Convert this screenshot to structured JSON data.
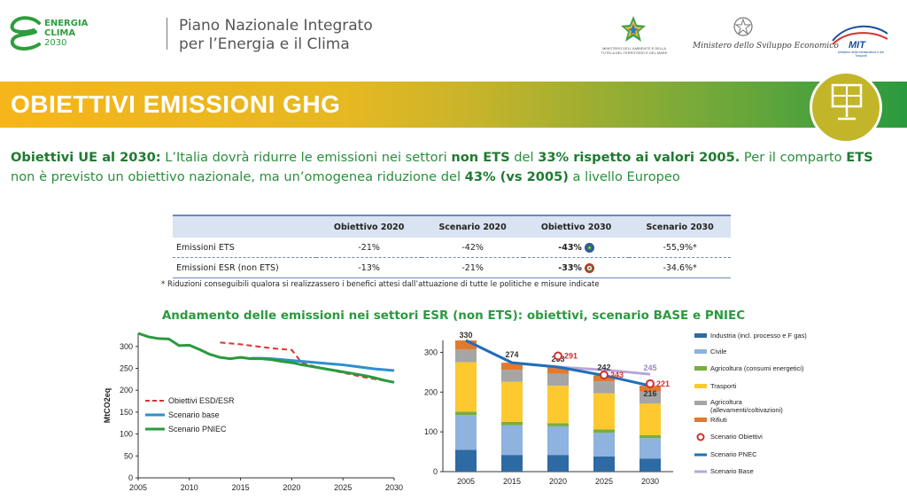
{
  "header": {
    "logo_line1": "ENERGIA",
    "logo_line2": "CLIMA",
    "logo_line3": "2030",
    "title_line1": "Piano Nazionale Integrato",
    "title_line2": "per l’Energia e il Clima",
    "ministry1": "MINISTERO DELL'AMBIENTE E DELLA TUTELA DEL TERRITORIO E DEL MARE",
    "ministry2": "Ministero dello Sviluppo Economico",
    "ministry3_logo": "MIT",
    "ministry3": "Ministero delle Infrastrutture e dei Trasporti"
  },
  "banner": {
    "title": "OBIETTIVI EMISSIONI GHG",
    "icon": "solar-panel-icon"
  },
  "intro": {
    "p1": "Obiettivi UE al 2030:",
    "p2": " L’Italia dovrà ridurre le emissioni nei settori ",
    "p3": "non ETS",
    "p4": " del ",
    "p5": "33% rispetto ai valori 2005.",
    "p6": " Per il comparto ",
    "p7": "ETS",
    "p8": " non è previsto un obiettivo nazionale, ma un’omogenea riduzione del ",
    "p9": "43% (vs 2005)",
    "p10": " a livello Europeo"
  },
  "table": {
    "headers": [
      "",
      "Obiettivo 2020",
      "Scenario 2020",
      "Obiettivo 2030",
      "Scenario 2030"
    ],
    "rows": [
      {
        "label": "Emissioni ETS",
        "cells": [
          "-21%",
          "-42%",
          "-43%",
          "-55,9%*"
        ]
      },
      {
        "label": "Emissioni ESR (non ETS)",
        "cells": [
          "-13%",
          "-21%",
          "-33%",
          "-34.6%*"
        ]
      }
    ],
    "note": "* Riduzioni conseguibili qualora si realizzassero i benefici attesi dall’attuazione di tutte le politiche e misure indicate"
  },
  "section_title": "Andamento delle emissioni nei settori ESR (non ETS): obiettivi, scenario BASE e PNIEC",
  "colors": {
    "green": "#2a9a3e",
    "blue_line": "#2e8fce",
    "red_dash": "#e03030",
    "industria": "#2e6aa3",
    "civile": "#8db3de",
    "agricoltura_energ": "#79ad3f",
    "trasporti": "#fdc92f",
    "agricoltura_allev": "#a5a5a5",
    "rifiuti": "#e07a30",
    "pnec_line": "#1f6fb8",
    "base_line": "#b8a6d9",
    "obiettivi_marker": "#d03030"
  },
  "chart_data": [
    {
      "type": "line",
      "title": "",
      "xlabel": "",
      "ylabel": "MtCO2eq",
      "xlim": [
        2005,
        2030
      ],
      "ylim": [
        0,
        330
      ],
      "x_ticks": [
        2005,
        2010,
        2015,
        2020,
        2025,
        2030
      ],
      "y_ticks": [
        0,
        50,
        100,
        150,
        200,
        250,
        300
      ],
      "grid": false,
      "legend_position": "bottom-left",
      "series": [
        {
          "name": "Obiettivi ESD/ESR",
          "style": "dashed",
          "x": [
            2013,
            2014,
            2015,
            2016,
            2017,
            2018,
            2019,
            2020,
            2021,
            2022,
            2023,
            2024,
            2025,
            2026,
            2027,
            2028,
            2029,
            2030
          ],
          "y": [
            309,
            307,
            305,
            302,
            299,
            296,
            294,
            292,
            262,
            256,
            250,
            245,
            240,
            235,
            230,
            226,
            222,
            219
          ]
        },
        {
          "name": "Scenario base",
          "style": "solid",
          "x": [
            2016,
            2017,
            2018,
            2019,
            2020,
            2021,
            2022,
            2023,
            2024,
            2025,
            2026,
            2027,
            2028,
            2029,
            2030
          ],
          "y": [
            273,
            273,
            272,
            270,
            268,
            266,
            264,
            262,
            260,
            258,
            255,
            252,
            249,
            247,
            245
          ]
        },
        {
          "name": "Scenario PNIEC",
          "style": "solid",
          "x": [
            2005,
            2006,
            2007,
            2008,
            2009,
            2010,
            2011,
            2012,
            2013,
            2014,
            2015,
            2016,
            2017,
            2018,
            2019,
            2020,
            2021,
            2022,
            2023,
            2024,
            2025,
            2026,
            2027,
            2028,
            2029,
            2030
          ],
          "y": [
            330,
            322,
            318,
            317,
            302,
            303,
            293,
            282,
            275,
            272,
            275,
            272,
            272,
            270,
            266,
            263,
            258,
            254,
            250,
            246,
            242,
            238,
            234,
            229,
            223,
            218
          ]
        }
      ]
    },
    {
      "type": "bar",
      "stacked": true,
      "title": "",
      "xlabel": "",
      "ylabel": "",
      "categories": [
        "2005",
        "2015",
        "2020",
        "2025",
        "2030"
      ],
      "ylim": [
        0,
        330
      ],
      "y_ticks": [
        0,
        100,
        200,
        300
      ],
      "grid": false,
      "legend_position": "right",
      "series": [
        {
          "name": "Industria (incl. processo e F gas)",
          "values": [
            55,
            42,
            42,
            38,
            33
          ]
        },
        {
          "name": "Civile",
          "values": [
            87,
            75,
            72,
            60,
            51
          ]
        },
        {
          "name": "Agricoltura  (consumi energetici)",
          "values": [
            9,
            8,
            8,
            8,
            8
          ]
        },
        {
          "name": "Trasporti",
          "values": [
            124,
            101,
            94,
            91,
            79
          ]
        },
        {
          "name": "Agricoltura (allevamenti/coltivazioni)",
          "values": [
            32,
            30,
            30,
            30,
            30
          ]
        },
        {
          "name": "Rifiuti",
          "values": [
            23,
            18,
            17,
            15,
            15
          ]
        }
      ],
      "totals": [
        330,
        274,
        263,
        242,
        216
      ],
      "line_series": [
        {
          "name": "Scenario Obiettivi",
          "kind": "marker",
          "x": [
            "2020",
            "2025",
            "2030"
          ],
          "values": [
            291,
            243,
            221
          ]
        },
        {
          "name": "Scenario PNEC",
          "kind": "line",
          "x": [
            "2005",
            "2015",
            "2020",
            "2025",
            "2030"
          ],
          "values": [
            330,
            274,
            263,
            242,
            216
          ]
        },
        {
          "name": "Scenario Base",
          "kind": "line",
          "x": [
            "2005",
            "2015",
            "2020",
            "2025",
            "2030"
          ],
          "values": [
            330,
            274,
            263,
            256,
            245
          ],
          "labels_shown": [
            "",
            "",
            "",
            "",
            "245"
          ]
        }
      ]
    }
  ]
}
